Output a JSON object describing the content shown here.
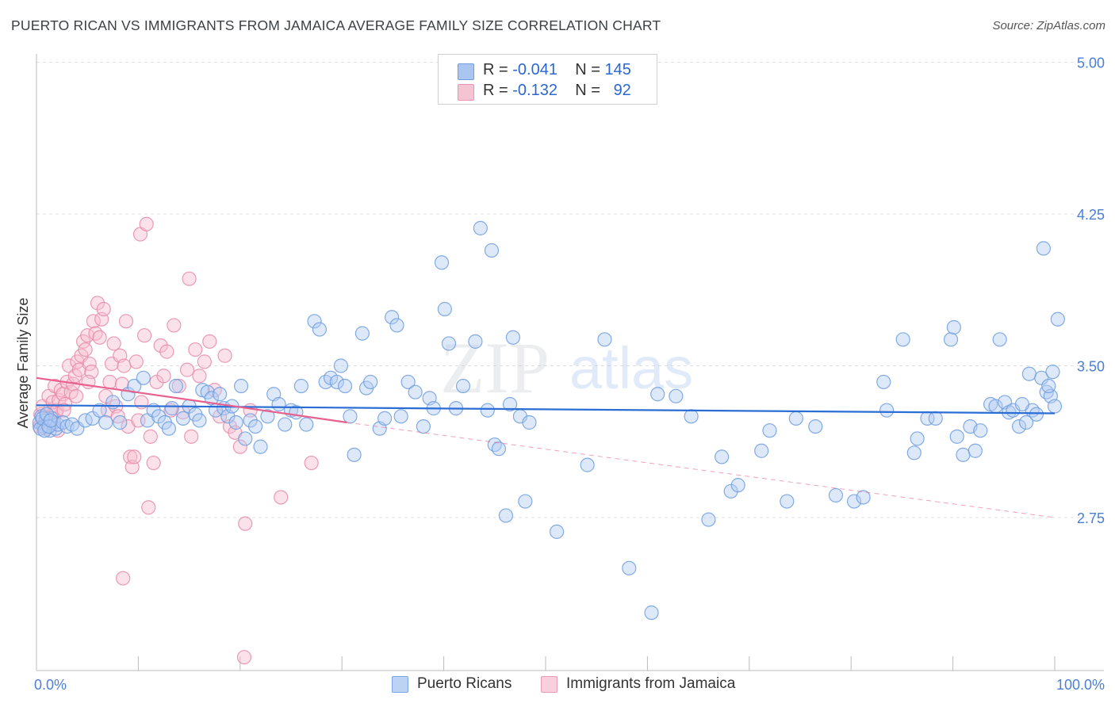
{
  "title": "PUERTO RICAN VS IMMIGRANTS FROM JAMAICA AVERAGE FAMILY SIZE CORRELATION CHART",
  "source": "Source: ZipAtlas.com",
  "watermark": {
    "zip": "ZIP",
    "atlas": "atlas"
  },
  "legend": {
    "r_label": "R =",
    "n_label": "N =",
    "rows": [
      {
        "r": "-0.041",
        "n": "145",
        "color": "#a8c6f0"
      },
      {
        "r": "-0.132",
        "n": "92",
        "color": "#f5b8cb"
      }
    ]
  },
  "bottom_legend": [
    {
      "label": "Puerto Ricans",
      "color": "#a8c6f0"
    },
    {
      "label": "Immigrants from Jamaica",
      "color": "#f5b8cb"
    }
  ],
  "chart_data": {
    "type": "scatter",
    "title": "PUERTO RICAN VS IMMIGRANTS FROM JAMAICA AVERAGE FAMILY SIZE CORRELATION CHART",
    "xlabel": "",
    "ylabel": "Average Family Size",
    "x_tick_labels": [
      "0.0%",
      "100.0%"
    ],
    "y_ticks": [
      2.75,
      3.5,
      4.25,
      5.0
    ],
    "y_tick_labels": [
      "2.75",
      "3.50",
      "4.25",
      "5.00"
    ],
    "xlim": [
      0,
      100
    ],
    "ylim": [
      2.0,
      5.15
    ],
    "grid": true,
    "colors": {
      "blue": "#5a8fdc",
      "pink": "#e87ea1",
      "blue_line": "#2a6dd4",
      "pink_line": "#e8608e"
    },
    "series": [
      {
        "name": "Puerto Ricans",
        "r": -0.041,
        "n": 145,
        "trend": {
          "x": [
            0,
            100
          ],
          "y": [
            3.305,
            3.265
          ]
        },
        "points": [
          [
            0.3,
            3.22
          ],
          [
            0.5,
            3.25
          ],
          [
            0.7,
            3.2
          ],
          [
            0.9,
            3.23
          ],
          [
            1.1,
            3.21
          ],
          [
            1.3,
            3.18
          ],
          [
            1.5,
            3.24
          ],
          [
            1.7,
            3.22
          ],
          [
            1.9,
            3.19
          ],
          [
            2.1,
            3.21
          ],
          [
            0.4,
            3.19
          ],
          [
            0.6,
            3.24
          ],
          [
            0.8,
            3.18
          ],
          [
            1.0,
            3.26
          ],
          [
            1.2,
            3.2
          ],
          [
            1.4,
            3.23
          ],
          [
            2.6,
            3.22
          ],
          [
            3.0,
            3.2
          ],
          [
            3.5,
            3.21
          ],
          [
            4.0,
            3.19
          ],
          [
            4.8,
            3.23
          ],
          [
            5.5,
            3.24
          ],
          [
            6.2,
            3.28
          ],
          [
            6.8,
            3.22
          ],
          [
            7.5,
            3.32
          ],
          [
            8.2,
            3.22
          ],
          [
            9.0,
            3.36
          ],
          [
            9.6,
            3.4
          ],
          [
            10.5,
            3.44
          ],
          [
            10.9,
            3.23
          ],
          [
            11.5,
            3.28
          ],
          [
            12.0,
            3.25
          ],
          [
            12.6,
            3.22
          ],
          [
            13.0,
            3.19
          ],
          [
            13.3,
            3.29
          ],
          [
            13.7,
            3.4
          ],
          [
            14.4,
            3.24
          ],
          [
            15.0,
            3.3
          ],
          [
            15.6,
            3.26
          ],
          [
            16.0,
            3.23
          ],
          [
            16.3,
            3.38
          ],
          [
            16.8,
            3.37
          ],
          [
            17.2,
            3.34
          ],
          [
            17.6,
            3.28
          ],
          [
            18.0,
            3.36
          ],
          [
            18.4,
            3.29
          ],
          [
            18.8,
            3.25
          ],
          [
            19.2,
            3.3
          ],
          [
            19.6,
            3.22
          ],
          [
            20.1,
            3.4
          ],
          [
            20.5,
            3.14
          ],
          [
            21.0,
            3.23
          ],
          [
            21.5,
            3.2
          ],
          [
            22.0,
            3.1
          ],
          [
            22.7,
            3.25
          ],
          [
            23.3,
            3.36
          ],
          [
            23.8,
            3.31
          ],
          [
            24.4,
            3.21
          ],
          [
            25.0,
            3.28
          ],
          [
            25.5,
            3.27
          ],
          [
            26.0,
            3.4
          ],
          [
            26.5,
            3.21
          ],
          [
            27.3,
            3.72
          ],
          [
            27.8,
            3.68
          ],
          [
            28.4,
            3.42
          ],
          [
            28.9,
            3.44
          ],
          [
            29.5,
            3.42
          ],
          [
            29.9,
            3.5
          ],
          [
            30.3,
            3.4
          ],
          [
            30.8,
            3.25
          ],
          [
            31.2,
            3.06
          ],
          [
            32.0,
            3.66
          ],
          [
            32.4,
            3.39
          ],
          [
            32.8,
            3.42
          ],
          [
            33.7,
            3.19
          ],
          [
            34.2,
            3.24
          ],
          [
            34.9,
            3.74
          ],
          [
            35.4,
            3.7
          ],
          [
            35.8,
            3.25
          ],
          [
            36.5,
            3.42
          ],
          [
            37.2,
            3.37
          ],
          [
            38.0,
            3.2
          ],
          [
            38.6,
            3.34
          ],
          [
            39.0,
            3.29
          ],
          [
            39.8,
            4.01
          ],
          [
            40.1,
            3.78
          ],
          [
            40.5,
            3.61
          ],
          [
            41.2,
            3.29
          ],
          [
            41.9,
            3.4
          ],
          [
            43.1,
            3.62
          ],
          [
            43.6,
            4.18
          ],
          [
            44.3,
            3.28
          ],
          [
            44.7,
            4.07
          ],
          [
            45.0,
            3.11
          ],
          [
            45.4,
            3.09
          ],
          [
            46.1,
            2.76
          ],
          [
            46.5,
            3.31
          ],
          [
            46.8,
            3.64
          ],
          [
            47.5,
            3.25
          ],
          [
            48.0,
            2.83
          ],
          [
            48.4,
            3.22
          ],
          [
            51.1,
            2.68
          ],
          [
            54.1,
            3.01
          ],
          [
            55.8,
            3.63
          ],
          [
            58.2,
            2.5
          ],
          [
            60.4,
            2.28
          ],
          [
            61.0,
            3.36
          ],
          [
            62.8,
            3.35
          ],
          [
            64.3,
            3.25
          ],
          [
            66.0,
            2.74
          ],
          [
            67.3,
            3.05
          ],
          [
            68.2,
            2.88
          ],
          [
            68.9,
            2.91
          ],
          [
            71.2,
            3.08
          ],
          [
            72.0,
            3.18
          ],
          [
            73.7,
            2.83
          ],
          [
            74.6,
            3.24
          ],
          [
            76.5,
            3.2
          ],
          [
            78.5,
            2.86
          ],
          [
            80.3,
            2.83
          ],
          [
            81.2,
            2.85
          ],
          [
            83.2,
            3.42
          ],
          [
            83.5,
            3.28
          ],
          [
            85.1,
            3.63
          ],
          [
            86.2,
            3.07
          ],
          [
            86.5,
            3.14
          ],
          [
            87.5,
            3.24
          ],
          [
            88.3,
            3.24
          ],
          [
            89.8,
            3.63
          ],
          [
            90.1,
            3.69
          ],
          [
            90.4,
            3.15
          ],
          [
            91.0,
            3.06
          ],
          [
            91.7,
            3.2
          ],
          [
            92.2,
            3.08
          ],
          [
            92.7,
            3.18
          ],
          [
            93.7,
            3.31
          ],
          [
            94.2,
            3.3
          ],
          [
            94.6,
            3.63
          ],
          [
            95.1,
            3.32
          ],
          [
            95.5,
            3.27
          ],
          [
            96.5,
            3.2
          ],
          [
            97.2,
            3.22
          ],
          [
            97.8,
            3.28
          ],
          [
            98.2,
            3.26
          ],
          [
            98.9,
            4.08
          ],
          [
            99.2,
            3.37
          ],
          [
            99.6,
            3.35
          ],
          [
            100.0,
            3.3
          ],
          [
            95.9,
            3.28
          ],
          [
            96.8,
            3.31
          ],
          [
            97.5,
            3.46
          ],
          [
            98.7,
            3.44
          ],
          [
            99.4,
            3.4
          ],
          [
            100.3,
            3.73
          ],
          [
            99.8,
            3.47
          ]
        ]
      },
      {
        "name": "Immigrants from Jamaica",
        "r": -0.132,
        "n": 92,
        "trend": {
          "x": [
            0,
            30.5
          ],
          "y": [
            3.44,
            3.22
          ]
        },
        "trend_dashed": {
          "x": [
            30.5,
            100
          ],
          "y": [
            3.22,
            2.75
          ]
        },
        "points": [
          [
            0.3,
            3.2
          ],
          [
            0.5,
            3.22
          ],
          [
            0.7,
            3.25
          ],
          [
            0.9,
            3.19
          ],
          [
            1.1,
            3.23
          ],
          [
            1.3,
            3.28
          ],
          [
            1.5,
            3.21
          ],
          [
            1.7,
            3.24
          ],
          [
            1.9,
            3.27
          ],
          [
            2.1,
            3.18
          ],
          [
            0.4,
            3.26
          ],
          [
            0.6,
            3.3
          ],
          [
            0.8,
            3.21
          ],
          [
            1.0,
            3.24
          ],
          [
            1.2,
            3.35
          ],
          [
            1.4,
            3.22
          ],
          [
            1.6,
            3.32
          ],
          [
            1.8,
            3.4
          ],
          [
            2.0,
            3.28
          ],
          [
            2.2,
            3.33
          ],
          [
            2.4,
            3.38
          ],
          [
            2.6,
            3.36
          ],
          [
            2.8,
            3.31
          ],
          [
            3.0,
            3.42
          ],
          [
            3.2,
            3.5
          ],
          [
            3.4,
            3.37
          ],
          [
            3.6,
            3.41
          ],
          [
            3.8,
            3.45
          ],
          [
            4.0,
            3.52
          ],
          [
            4.2,
            3.48
          ],
          [
            4.4,
            3.55
          ],
          [
            4.6,
            3.62
          ],
          [
            4.8,
            3.58
          ],
          [
            5.0,
            3.65
          ],
          [
            5.2,
            3.51
          ],
          [
            5.4,
            3.47
          ],
          [
            5.6,
            3.72
          ],
          [
            5.8,
            3.66
          ],
          [
            6.0,
            3.81
          ],
          [
            6.2,
            3.64
          ],
          [
            6.4,
            3.73
          ],
          [
            6.6,
            3.78
          ],
          [
            6.8,
            3.35
          ],
          [
            7.0,
            3.28
          ],
          [
            7.2,
            3.42
          ],
          [
            7.4,
            3.51
          ],
          [
            7.6,
            3.61
          ],
          [
            7.8,
            3.3
          ],
          [
            8.0,
            3.25
          ],
          [
            8.2,
            3.55
          ],
          [
            8.4,
            3.41
          ],
          [
            8.6,
            3.5
          ],
          [
            8.8,
            3.72
          ],
          [
            9.0,
            3.2
          ],
          [
            9.2,
            3.05
          ],
          [
            9.4,
            3.0
          ],
          [
            9.6,
            3.05
          ],
          [
            9.8,
            3.52
          ],
          [
            10.0,
            3.23
          ],
          [
            10.3,
            3.32
          ],
          [
            10.6,
            3.65
          ],
          [
            11.0,
            2.8
          ],
          [
            11.2,
            3.15
          ],
          [
            11.5,
            3.02
          ],
          [
            11.8,
            3.42
          ],
          [
            12.2,
            3.6
          ],
          [
            12.5,
            3.45
          ],
          [
            12.8,
            3.57
          ],
          [
            13.2,
            3.28
          ],
          [
            13.5,
            3.7
          ],
          [
            14.0,
            3.4
          ],
          [
            14.4,
            3.27
          ],
          [
            14.8,
            3.48
          ],
          [
            15.2,
            3.15
          ],
          [
            15.6,
            3.58
          ],
          [
            16.0,
            3.45
          ],
          [
            16.5,
            3.52
          ],
          [
            17.0,
            3.62
          ],
          [
            17.5,
            3.38
          ],
          [
            18.0,
            3.25
          ],
          [
            18.5,
            3.55
          ],
          [
            19.0,
            3.2
          ],
          [
            19.5,
            3.17
          ],
          [
            20.0,
            3.1
          ],
          [
            20.5,
            2.72
          ],
          [
            21.0,
            3.28
          ],
          [
            24.0,
            2.85
          ],
          [
            27.0,
            3.02
          ],
          [
            10.2,
            4.15
          ],
          [
            10.8,
            4.2
          ],
          [
            15.0,
            3.93
          ],
          [
            8.5,
            2.45
          ],
          [
            20.4,
            2.06
          ],
          [
            2.7,
            3.28
          ],
          [
            3.9,
            3.35
          ],
          [
            5.1,
            3.42
          ]
        ]
      }
    ]
  }
}
